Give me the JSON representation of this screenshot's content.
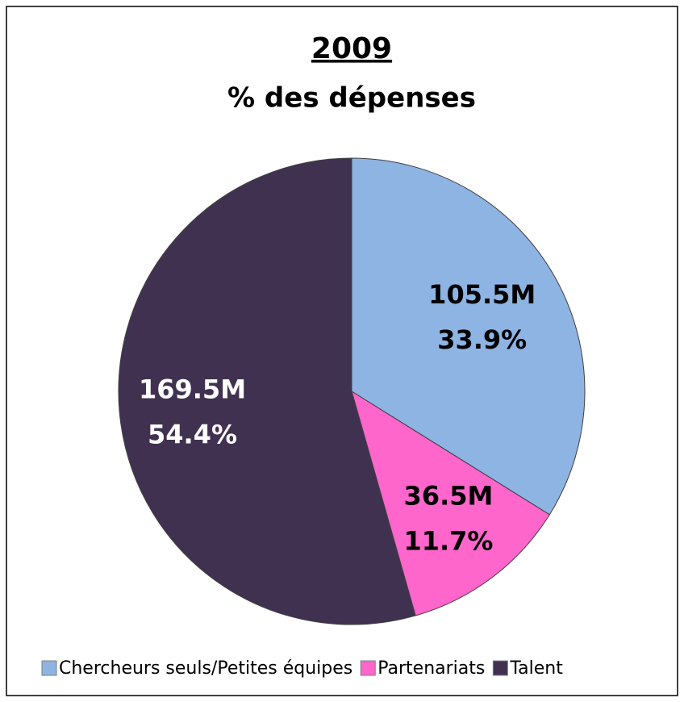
{
  "chart_data": {
    "type": "pie",
    "title": "2009",
    "subtitle": "% des dépenses",
    "categories": [
      "Chercheurs seuls/Petites équipes",
      "Partenariats",
      "Talent"
    ],
    "values": [
      105.5,
      36.5,
      169.5
    ],
    "value_labels": [
      "105.5M",
      "36.5M",
      "169.5M"
    ],
    "percent_labels": [
      "33.9%",
      "11.7%",
      "54.4%"
    ],
    "colors": [
      "#8eb4e3",
      "#ff66cc",
      "#403151"
    ],
    "label_colors": [
      "#000000",
      "#000000",
      "#ffffff"
    ],
    "legend": "bottom"
  }
}
